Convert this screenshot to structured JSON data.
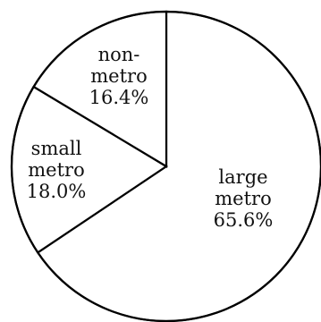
{
  "chart_data": {
    "type": "pie",
    "title": "",
    "slices": [
      {
        "label_lines": [
          "large",
          "metro"
        ],
        "label": "large metro",
        "value": 65.6,
        "value_label": "65.6%"
      },
      {
        "label_lines": [
          "small",
          "metro"
        ],
        "label": "small metro",
        "value": 18.0,
        "value_label": "18.0%"
      },
      {
        "label_lines": [
          "non-",
          "metro"
        ],
        "label": "non-metro",
        "value": 16.4,
        "value_label": "16.4%"
      }
    ],
    "start_angle_deg": 0,
    "direction": "clockwise",
    "fill_color": "#ffffff",
    "edge_color": "#000000",
    "legend": "none"
  }
}
